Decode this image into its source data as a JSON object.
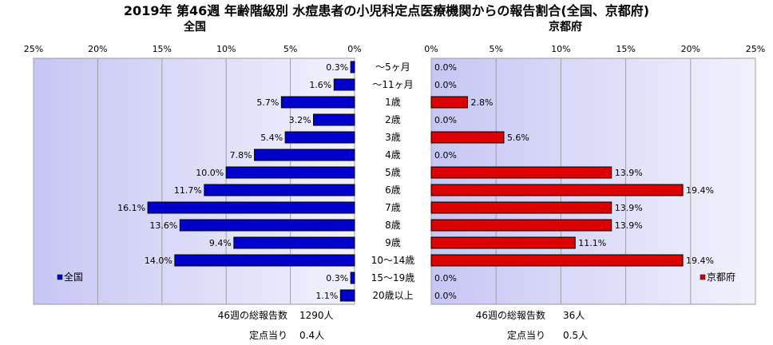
{
  "chart_data": {
    "type": "bar",
    "title": "2019年 第46週 年齢階級別 水痘患者の小児科定点医療機関からの報告割合(全国、京都府)",
    "categories": [
      "〜5ヶ月",
      "〜11ヶ月",
      "1歳",
      "2歳",
      "3歳",
      "4歳",
      "5歳",
      "6歳",
      "7歳",
      "8歳",
      "9歳",
      "10〜14歳",
      "15〜19歳",
      "20歳以上"
    ],
    "panels": [
      {
        "name": "全国",
        "legend": "全国",
        "color": "#0000cc",
        "values": [
          0.3,
          1.6,
          5.7,
          3.2,
          5.4,
          7.8,
          10.0,
          11.7,
          16.1,
          13.6,
          9.4,
          14.0,
          0.3,
          1.1
        ],
        "labels": [
          "0.3%",
          "1.6%",
          "5.7%",
          "3.2%",
          "5.4%",
          "7.8%",
          "10.0%",
          "11.7%",
          "16.1%",
          "13.6%",
          "9.4%",
          "14.0%",
          "0.3%",
          "1.1%"
        ],
        "xlim": [
          0,
          25
        ],
        "ticks": [
          "0%",
          "5%",
          "10%",
          "15%",
          "20%",
          "25%"
        ],
        "direction": "reversed",
        "summary": [
          {
            "label": "46週の総報告数",
            "value": "1290人"
          },
          {
            "label": "定点当り",
            "value": "0.4人"
          }
        ]
      },
      {
        "name": "京都府",
        "legend": "京都府",
        "color": "#dd0000",
        "values": [
          0.0,
          0.0,
          2.8,
          0.0,
          5.6,
          0.0,
          13.9,
          19.4,
          13.9,
          13.9,
          11.1,
          19.4,
          0.0,
          0.0
        ],
        "labels": [
          "0.0%",
          "0.0%",
          "2.8%",
          "0.0%",
          "5.6%",
          "0.0%",
          "13.9%",
          "19.4%",
          "13.9%",
          "13.9%",
          "11.1%",
          "19.4%",
          "0.0%",
          "0.0%"
        ],
        "xlim": [
          0,
          25
        ],
        "ticks": [
          "0%",
          "5%",
          "10%",
          "15%",
          "20%",
          "25%"
        ],
        "direction": "normal",
        "summary": [
          {
            "label": "46週の総報告数",
            "value": "36人"
          },
          {
            "label": "定点当り",
            "value": "0.5人"
          }
        ]
      }
    ],
    "grid": true,
    "legend_placement": "bottom-left inside each panel"
  }
}
